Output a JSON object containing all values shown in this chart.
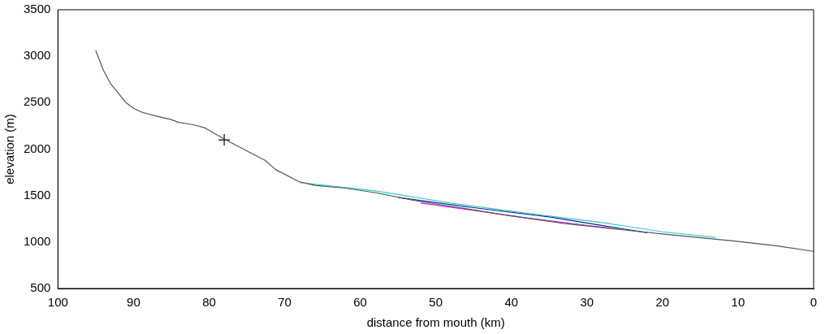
{
  "chart_data": {
    "type": "line",
    "xlabel": "distance from mouth (km)",
    "ylabel": "elevation (m)",
    "xlim": [
      100,
      0
    ],
    "xticks": [
      100,
      90,
      80,
      70,
      60,
      50,
      40,
      30,
      20,
      10,
      0
    ],
    "ylim": [
      500,
      3500
    ],
    "yticks": [
      500,
      1000,
      1500,
      2000,
      2500,
      3000,
      3500
    ],
    "grid": false,
    "legend": false,
    "line_style": "solid",
    "series": [
      {
        "color": "#555555",
        "x": [
          95,
          94,
          93,
          91,
          90,
          89,
          87.2,
          85.1,
          84.1,
          82,
          80.6,
          77.8,
          75,
          72.6,
          71.2,
          68.1,
          66,
          62,
          57.9,
          52.4,
          46.1,
          40.8,
          33.1,
          26.2,
          19.2,
          10.5,
          5,
          0
        ],
        "values": [
          3060,
          2850,
          2700,
          2500,
          2440,
          2400,
          2360,
          2320,
          2290,
          2260,
          2230,
          2100,
          1980,
          1880,
          1780,
          1650,
          1610,
          1580,
          1530,
          1440,
          1360,
          1290,
          1200,
          1140,
          1080,
          1010,
          960,
          900
        ]
      },
      {
        "color": "#33cccc",
        "x": [
          68,
          58,
          48,
          38,
          28,
          20,
          13
        ],
        "values": [
          1640,
          1550,
          1420,
          1310,
          1210,
          1110,
          1050
        ]
      },
      {
        "color": "#1a1aa0",
        "x": [
          55,
          45,
          35,
          22
        ],
        "values": [
          1480,
          1370,
          1270,
          1100
        ]
      },
      {
        "color": "#cc33cc",
        "x": [
          52,
          45,
          38,
          30,
          27
        ],
        "values": [
          1420,
          1340,
          1260,
          1180,
          1150
        ]
      },
      {
        "type": "scatter",
        "marker": "cross",
        "color": "#000000",
        "x": [
          78
        ],
        "values": [
          2100
        ]
      }
    ]
  }
}
